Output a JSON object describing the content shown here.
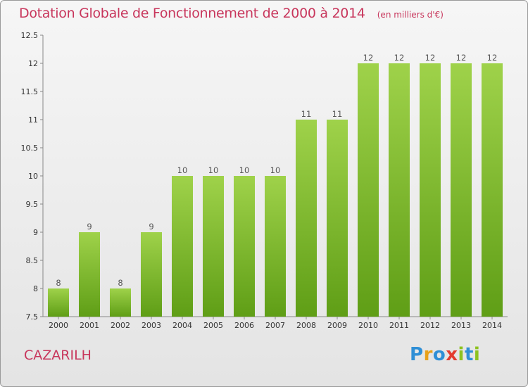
{
  "header": {
    "title": "Dotation Globale de Fonctionnement de 2000 à 2014",
    "subtitle": "(en milliers d'€)"
  },
  "footer": {
    "commune": "CAZARILH",
    "brand": "Proxiti"
  },
  "colors": {
    "bar_top": "#9fd24a",
    "bar_bottom": "#5f9e16",
    "accent": "#c8365c",
    "brand_letters": [
      "#2f8fd6",
      "#e8a11a",
      "#2f8fd6",
      "#e33b2f",
      "#8dc21f",
      "#2f8fd6",
      "#8dc21f"
    ]
  },
  "chart_data": {
    "type": "bar",
    "title": "Dotation Globale de Fonctionnement de 2000 à 2014",
    "subtitle": "(en milliers d'€)",
    "categories": [
      "2000",
      "2001",
      "2002",
      "2003",
      "2004",
      "2005",
      "2006",
      "2007",
      "2008",
      "2009",
      "2010",
      "2011",
      "2012",
      "2013",
      "2014"
    ],
    "values": [
      8,
      9,
      8,
      9,
      10,
      10,
      10,
      10,
      11,
      11,
      12,
      12,
      12,
      12,
      12
    ],
    "ylim": [
      7.5,
      12.5
    ],
    "yticks": [
      "7.5",
      "8",
      "8.5",
      "9",
      "9.5",
      "10",
      "10.5",
      "11",
      "11.5",
      "12",
      "12.5"
    ],
    "grid": false,
    "legend": "none"
  }
}
